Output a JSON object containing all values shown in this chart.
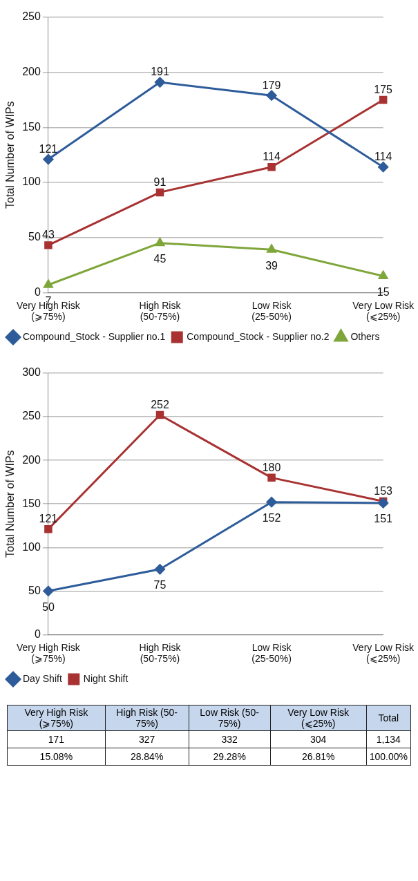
{
  "chart_data": [
    {
      "type": "line",
      "ylabel": "Total Number of WIPs",
      "categories": [
        "Very High Risk (⩾75%)",
        "High Risk (50-75%)",
        "Low Risk (25-50%)",
        "Very Low Risk (⩽25%)"
      ],
      "series": [
        {
          "name": "Compound_Stock - Supplier no.1",
          "color": "#2e5c9a",
          "marker": "diamond",
          "values": [
            121,
            191,
            179,
            114
          ]
        },
        {
          "name": "Compound_Stock - Supplier no.2",
          "color": "#a83232",
          "marker": "square",
          "values": [
            43,
            91,
            114,
            175
          ]
        },
        {
          "name": "Others",
          "color": "#7fa63a",
          "marker": "triangle",
          "values": [
            7,
            45,
            39,
            15
          ]
        }
      ],
      "ylim": [
        0,
        250
      ],
      "yticks": [
        0,
        50,
        100,
        150,
        200,
        250
      ],
      "grid": "y",
      "legend": "bottom",
      "data_labels": true
    },
    {
      "type": "line",
      "ylabel": "Total Number of WIPs",
      "categories": [
        "Very High Risk (⩾75%)",
        "High Risk (50-75%)",
        "Low Risk (25-50%)",
        "Very Low Risk (⩽25%)"
      ],
      "series": [
        {
          "name": "Day Shift",
          "color": "#2e5c9a",
          "marker": "diamond",
          "values": [
            50,
            75,
            152,
            151
          ]
        },
        {
          "name": "Night Shift",
          "color": "#a83232",
          "marker": "square",
          "values": [
            121,
            252,
            180,
            153
          ]
        }
      ],
      "ylim": [
        0,
        300
      ],
      "yticks": [
        0,
        50,
        100,
        150,
        200,
        250,
        300
      ],
      "grid": "y",
      "legend": "bottom",
      "data_labels": true
    },
    {
      "type": "other",
      "categories": [
        "Very High Risk (⩾75%)",
        "High Risk (50-75%)",
        "Low Risk (50-75%)",
        "Very Low Risk (⩽25%)",
        "Total"
      ],
      "series": [
        {
          "values": [
            171,
            327,
            332,
            304,
            1134
          ],
          "value_labels": [
            "171",
            "327",
            "332",
            "304",
            "1,134"
          ]
        },
        {
          "values": [
            15.08,
            28.84,
            29.28,
            26.81,
            100
          ],
          "value_labels": [
            "15.08%",
            "28.84%",
            "29.28%",
            "26.81%",
            "100.00%"
          ]
        }
      ]
    }
  ]
}
